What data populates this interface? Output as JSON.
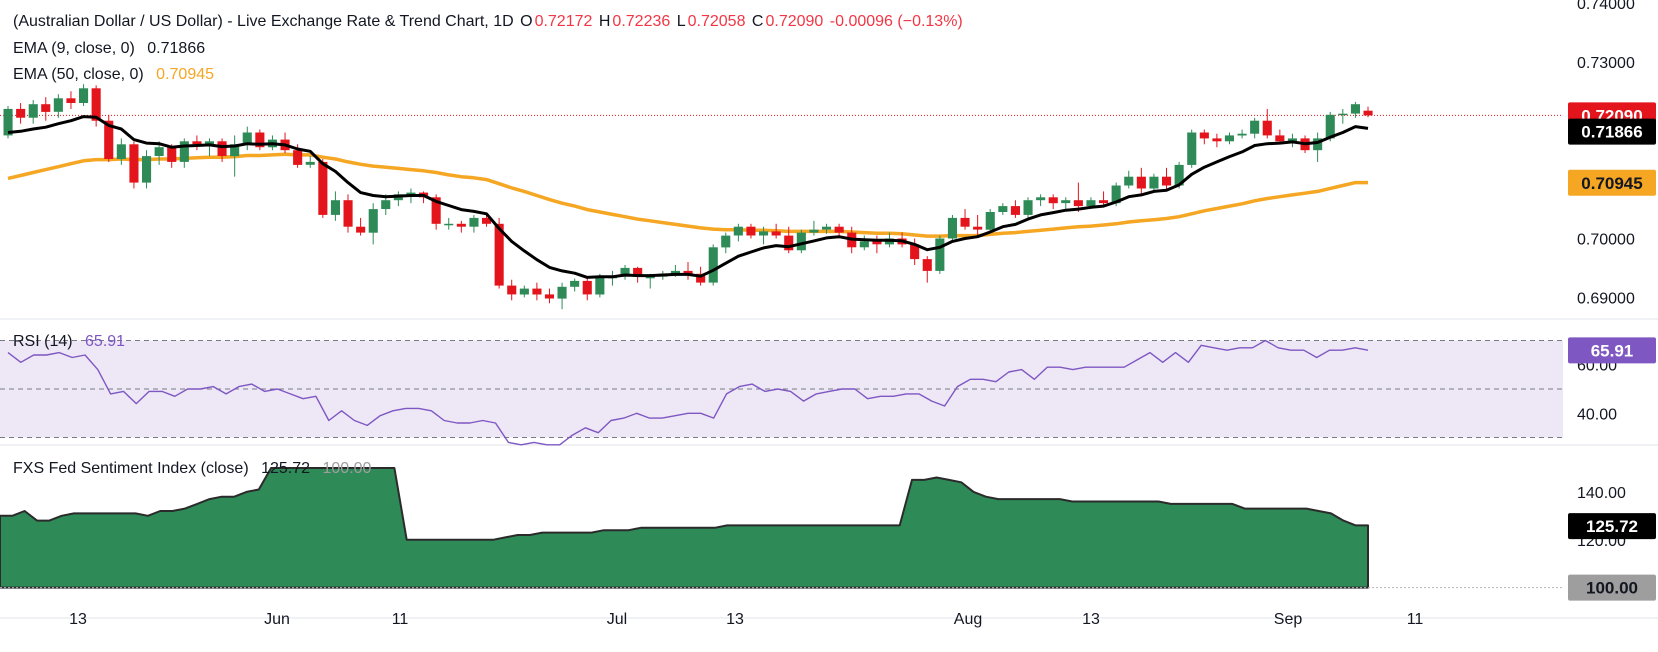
{
  "header": {
    "title": "(Australian Dollar / US Dollar) - Live Exchange Rate & Trend Chart, 1D",
    "open_label": "O",
    "open": "0.72172",
    "high_label": "H",
    "high": "0.72236",
    "low_label": "L",
    "low": "0.72058",
    "close_label": "C",
    "close": "0.72090",
    "change": "-0.00096 (−0.13%)"
  },
  "colors": {
    "up": "#2e8b57",
    "down": "#e3141b",
    "ema9": "#000000",
    "ema50": "#f5a623",
    "rsi": "#7e57c2",
    "rsi_band": "#ede7f6",
    "sentiment_fill": "#2e8b57",
    "badge_close": "#e3141b",
    "badge_ema9": "#000000",
    "badge_ema50": "#f5a623",
    "badge_gray": "#9e9e9e"
  },
  "chart_data": [
    {
      "type": "candlestick",
      "pane": "price",
      "y_ticks": [
        "0.74000",
        "0.73000",
        "0.70000",
        "0.69000"
      ],
      "ylim": [
        0.6865,
        0.7405
      ],
      "x_ticks": [
        "13",
        "Jun",
        "11",
        "Jul",
        "13",
        "Aug",
        "13",
        "Sep",
        "11"
      ],
      "ema9_label": "EMA (9, close, 0)",
      "ema9_value": "0.71866",
      "ema50_label": "EMA (50, close, 0)",
      "ema50_value": "0.70945",
      "last_close": "0.72090",
      "candles": [
        [
          0.7175,
          0.7225,
          0.717,
          0.722
        ],
        [
          0.722,
          0.723,
          0.7195,
          0.7205
        ],
        [
          0.7205,
          0.7235,
          0.7195,
          0.7228
        ],
        [
          0.7228,
          0.724,
          0.72,
          0.7215
        ],
        [
          0.7215,
          0.7245,
          0.7205,
          0.7238
        ],
        [
          0.7238,
          0.725,
          0.722,
          0.723
        ],
        [
          0.723,
          0.7262,
          0.7225,
          0.7255
        ],
        [
          0.7255,
          0.726,
          0.719,
          0.72
        ],
        [
          0.72,
          0.721,
          0.713,
          0.7135
        ],
        [
          0.7135,
          0.717,
          0.7125,
          0.716
        ],
        [
          0.716,
          0.7165,
          0.7085,
          0.7095
        ],
        [
          0.7095,
          0.715,
          0.7085,
          0.714
        ],
        [
          0.714,
          0.7165,
          0.7125,
          0.7155
        ],
        [
          0.7155,
          0.716,
          0.712,
          0.713
        ],
        [
          0.713,
          0.717,
          0.712,
          0.7165
        ],
        [
          0.7165,
          0.7175,
          0.715,
          0.716
        ],
        [
          0.716,
          0.717,
          0.714,
          0.7165
        ],
        [
          0.7165,
          0.717,
          0.713,
          0.714
        ],
        [
          0.714,
          0.7175,
          0.7105,
          0.716
        ],
        [
          0.716,
          0.719,
          0.715,
          0.718
        ],
        [
          0.718,
          0.7185,
          0.715,
          0.7155
        ],
        [
          0.7155,
          0.7175,
          0.715,
          0.7168
        ],
        [
          0.7168,
          0.718,
          0.7145,
          0.715
        ],
        [
          0.715,
          0.716,
          0.712,
          0.7125
        ],
        [
          0.7125,
          0.714,
          0.712,
          0.713
        ],
        [
          0.713,
          0.7135,
          0.7035,
          0.704
        ],
        [
          0.704,
          0.708,
          0.703,
          0.7065
        ],
        [
          0.7065,
          0.7075,
          0.701,
          0.702
        ],
        [
          0.702,
          0.7035,
          0.7005,
          0.701
        ],
        [
          0.701,
          0.706,
          0.699,
          0.705
        ],
        [
          0.705,
          0.7075,
          0.704,
          0.7065
        ],
        [
          0.7065,
          0.708,
          0.7055,
          0.7075
        ],
        [
          0.7075,
          0.7085,
          0.706,
          0.7078
        ],
        [
          0.7078,
          0.708,
          0.706,
          0.707
        ],
        [
          0.707,
          0.7075,
          0.7015,
          0.7025
        ],
        [
          0.7025,
          0.7035,
          0.7015,
          0.7025
        ],
        [
          0.7025,
          0.703,
          0.701,
          0.702
        ],
        [
          0.702,
          0.704,
          0.701,
          0.7035
        ],
        [
          0.7035,
          0.704,
          0.702,
          0.7025
        ],
        [
          0.7025,
          0.7035,
          0.6915,
          0.692
        ],
        [
          0.692,
          0.693,
          0.6895,
          0.6905
        ],
        [
          0.6905,
          0.692,
          0.69,
          0.6915
        ],
        [
          0.6915,
          0.6925,
          0.6895,
          0.6905
        ],
        [
          0.6905,
          0.6915,
          0.689,
          0.6898
        ],
        [
          0.6898,
          0.6925,
          0.688,
          0.6918
        ],
        [
          0.6918,
          0.6932,
          0.691,
          0.6928
        ],
        [
          0.6928,
          0.6935,
          0.6895,
          0.6905
        ],
        [
          0.6905,
          0.694,
          0.69,
          0.6935
        ],
        [
          0.6935,
          0.6945,
          0.692,
          0.6935
        ],
        [
          0.6935,
          0.6955,
          0.693,
          0.695
        ],
        [
          0.695,
          0.6952,
          0.6925,
          0.6935
        ],
        [
          0.6935,
          0.694,
          0.6915,
          0.6935
        ],
        [
          0.6935,
          0.6945,
          0.693,
          0.694
        ],
        [
          0.694,
          0.6955,
          0.6935,
          0.6945
        ],
        [
          0.6945,
          0.696,
          0.693,
          0.694
        ],
        [
          0.694,
          0.6952,
          0.692,
          0.6925
        ],
        [
          0.6925,
          0.699,
          0.692,
          0.6985
        ],
        [
          0.6985,
          0.701,
          0.6975,
          0.7005
        ],
        [
          0.7005,
          0.7025,
          0.6995,
          0.702
        ],
        [
          0.702,
          0.7025,
          0.7,
          0.7005
        ],
        [
          0.7005,
          0.702,
          0.699,
          0.7012
        ],
        [
          0.7012,
          0.7025,
          0.7,
          0.7005
        ],
        [
          0.7005,
          0.702,
          0.6975,
          0.698
        ],
        [
          0.698,
          0.7015,
          0.6975,
          0.701
        ],
        [
          0.701,
          0.703,
          0.7005,
          0.7015
        ],
        [
          0.7015,
          0.7025,
          0.7008,
          0.702
        ],
        [
          0.702,
          0.7025,
          0.7,
          0.701
        ],
        [
          0.701,
          0.702,
          0.6975,
          0.6985
        ],
        [
          0.6985,
          0.7005,
          0.698,
          0.6995
        ],
        [
          0.6995,
          0.7005,
          0.6975,
          0.699
        ],
        [
          0.699,
          0.701,
          0.6985,
          0.7
        ],
        [
          0.7,
          0.701,
          0.6985,
          0.699
        ],
        [
          0.699,
          0.7,
          0.6955,
          0.6965
        ],
        [
          0.6965,
          0.697,
          0.6925,
          0.6945
        ],
        [
          0.6945,
          0.7005,
          0.694,
          0.7
        ],
        [
          0.7,
          0.704,
          0.6995,
          0.7035
        ],
        [
          0.7035,
          0.705,
          0.7015,
          0.702
        ],
        [
          0.702,
          0.704,
          0.7005,
          0.7015
        ],
        [
          0.7015,
          0.705,
          0.701,
          0.7045
        ],
        [
          0.7045,
          0.706,
          0.704,
          0.7055
        ],
        [
          0.7055,
          0.7065,
          0.7035,
          0.704
        ],
        [
          0.704,
          0.707,
          0.7035,
          0.7065
        ],
        [
          0.7065,
          0.7075,
          0.7055,
          0.707
        ],
        [
          0.707,
          0.7075,
          0.705,
          0.706
        ],
        [
          0.706,
          0.707,
          0.705,
          0.7065
        ],
        [
          0.7065,
          0.7095,
          0.7045,
          0.7055
        ],
        [
          0.7055,
          0.707,
          0.705,
          0.7065
        ],
        [
          0.7065,
          0.708,
          0.7055,
          0.706
        ],
        [
          0.706,
          0.7095,
          0.7055,
          0.709
        ],
        [
          0.709,
          0.7115,
          0.7085,
          0.7105
        ],
        [
          0.7105,
          0.712,
          0.7075,
          0.7085
        ],
        [
          0.7085,
          0.711,
          0.708,
          0.7105
        ],
        [
          0.7105,
          0.712,
          0.708,
          0.709
        ],
        [
          0.709,
          0.713,
          0.7085,
          0.7125
        ],
        [
          0.7125,
          0.7185,
          0.712,
          0.718
        ],
        [
          0.718,
          0.7185,
          0.716,
          0.717
        ],
        [
          0.717,
          0.7178,
          0.7155,
          0.7165
        ],
        [
          0.7165,
          0.718,
          0.716,
          0.7175
        ],
        [
          0.7175,
          0.7185,
          0.717,
          0.7178
        ],
        [
          0.7178,
          0.7205,
          0.717,
          0.72
        ],
        [
          0.72,
          0.722,
          0.717,
          0.7175
        ],
        [
          0.7175,
          0.7185,
          0.716,
          0.7165
        ],
        [
          0.7165,
          0.7178,
          0.7155,
          0.717
        ],
        [
          0.717,
          0.7175,
          0.7145,
          0.715
        ],
        [
          0.715,
          0.718,
          0.713,
          0.717
        ],
        [
          0.717,
          0.7215,
          0.7165,
          0.721
        ],
        [
          0.721,
          0.722,
          0.7195,
          0.7212
        ],
        [
          0.7212,
          0.7232,
          0.7205,
          0.7228
        ],
        [
          0.7217,
          0.7224,
          0.7206,
          0.7209
        ]
      ],
      "ema9": [
        0.718,
        0.7182,
        0.7186,
        0.7189,
        0.7195,
        0.72,
        0.7207,
        0.7206,
        0.7192,
        0.7186,
        0.7168,
        0.7162,
        0.7161,
        0.7155,
        0.7157,
        0.7158,
        0.7159,
        0.7156,
        0.7157,
        0.7161,
        0.716,
        0.7161,
        0.7159,
        0.7152,
        0.7148,
        0.7127,
        0.7114,
        0.7095,
        0.7078,
        0.7073,
        0.7071,
        0.7072,
        0.7073,
        0.7073,
        0.7063,
        0.7056,
        0.7049,
        0.7046,
        0.7042,
        0.7017,
        0.6995,
        0.6979,
        0.6964,
        0.6951,
        0.6945,
        0.6941,
        0.6934,
        0.6935,
        0.6935,
        0.6938,
        0.6937,
        0.6937,
        0.6938,
        0.6939,
        0.6939,
        0.6936,
        0.6946,
        0.6958,
        0.697,
        0.6977,
        0.6984,
        0.6988,
        0.6986,
        0.6991,
        0.6996,
        0.7001,
        0.7003,
        0.6999,
        0.6998,
        0.6997,
        0.6997,
        0.6996,
        0.699,
        0.6981,
        0.6985,
        0.6995,
        0.7,
        0.7003,
        0.7011,
        0.702,
        0.7024,
        0.7033,
        0.704,
        0.7044,
        0.7048,
        0.705,
        0.7053,
        0.7055,
        0.7062,
        0.7071,
        0.7074,
        0.708,
        0.7082,
        0.7091,
        0.7109,
        0.7121,
        0.713,
        0.7139,
        0.7147,
        0.7158,
        0.7161,
        0.7162,
        0.7164,
        0.7161,
        0.7163,
        0.7172,
        0.718,
        0.719,
        0.7187
      ],
      "ema50": [
        0.7102,
        0.7107,
        0.7112,
        0.7117,
        0.7122,
        0.7127,
        0.7132,
        0.7134,
        0.7134,
        0.7135,
        0.7134,
        0.7134,
        0.7135,
        0.7135,
        0.7136,
        0.7137,
        0.7138,
        0.7138,
        0.7139,
        0.7141,
        0.7141,
        0.7142,
        0.7143,
        0.7142,
        0.7142,
        0.7138,
        0.7135,
        0.713,
        0.7126,
        0.7123,
        0.7121,
        0.7119,
        0.7117,
        0.7115,
        0.7112,
        0.7108,
        0.7105,
        0.7103,
        0.71,
        0.7093,
        0.7086,
        0.708,
        0.7073,
        0.7066,
        0.706,
        0.7055,
        0.7049,
        0.7045,
        0.7041,
        0.7037,
        0.7033,
        0.703,
        0.7027,
        0.7024,
        0.7021,
        0.7018,
        0.7016,
        0.7015,
        0.7015,
        0.7014,
        0.7014,
        0.7013,
        0.7012,
        0.7012,
        0.7012,
        0.7012,
        0.7012,
        0.7011,
        0.701,
        0.7009,
        0.7009,
        0.7008,
        0.7006,
        0.7004,
        0.7004,
        0.7005,
        0.7005,
        0.7005,
        0.7007,
        0.7009,
        0.701,
        0.7012,
        0.7014,
        0.7016,
        0.7018,
        0.702,
        0.7021,
        0.7023,
        0.7025,
        0.7028,
        0.703,
        0.7032,
        0.7034,
        0.7037,
        0.7042,
        0.7047,
        0.7051,
        0.7055,
        0.7059,
        0.7064,
        0.7068,
        0.7071,
        0.7074,
        0.7077,
        0.708,
        0.7085,
        0.709,
        0.7095,
        0.7095
      ]
    },
    {
      "type": "line",
      "pane": "rsi",
      "label": "RSI (14)",
      "value_text": "65.91",
      "y_ticks": [
        "60.00",
        "40.00"
      ],
      "ylim": [
        26.5,
        73.5
      ],
      "band": [
        30,
        70
      ],
      "midline": 50,
      "values": [
        65,
        61,
        64,
        64,
        65,
        63,
        64,
        58,
        48,
        49,
        44,
        49,
        49,
        47,
        50,
        50,
        51,
        48,
        51,
        52,
        49,
        50,
        48,
        46,
        47,
        37,
        41,
        37,
        35,
        39,
        41,
        42,
        42,
        41,
        37,
        36,
        36,
        37,
        36,
        28,
        27,
        28,
        27,
        27,
        31,
        34,
        32,
        37,
        38,
        40,
        38,
        38,
        39,
        40,
        40,
        38,
        48,
        51,
        52,
        49,
        50,
        49,
        45,
        48,
        49,
        50,
        50,
        46,
        47,
        47,
        48,
        48,
        45,
        43,
        51,
        54,
        54,
        53,
        57,
        58,
        54,
        59,
        59,
        58,
        59,
        59,
        59,
        59,
        62,
        65,
        61,
        65,
        61,
        68,
        67,
        66,
        67,
        67,
        70,
        67,
        66,
        66,
        63,
        66,
        66,
        67,
        66
      ]
    },
    {
      "type": "area",
      "pane": "sentiment",
      "label": "FXS Fed Sentiment Index (close)",
      "value_text": "125.72",
      "ref_value_text": "100.00",
      "y_ticks": [
        "140.00",
        "120.00"
      ],
      "ylim": [
        99,
        155
      ],
      "baseline": 100,
      "values": [
        130,
        130,
        132,
        128,
        128,
        130,
        131,
        131,
        131,
        131,
        131,
        131,
        130,
        132,
        132,
        133,
        135,
        137,
        138,
        138,
        140,
        141,
        150,
        150,
        150,
        150,
        150,
        150,
        150,
        150,
        150,
        150,
        150,
        120,
        120,
        120,
        120,
        120,
        120,
        120,
        120,
        121,
        122,
        122,
        123,
        123,
        123,
        123,
        123,
        124,
        124,
        124,
        125,
        125,
        125,
        125,
        125,
        125,
        125,
        126,
        126,
        126,
        126,
        126,
        126,
        126,
        126,
        126,
        126,
        126,
        126,
        126,
        126,
        126,
        145,
        145,
        146,
        145,
        144,
        140,
        138,
        137,
        137,
        137,
        137,
        137,
        137,
        136,
        136,
        136,
        136,
        136,
        136,
        136,
        136,
        135,
        135,
        135,
        135,
        135,
        135,
        133,
        133,
        133,
        133,
        133,
        133,
        132,
        131,
        128,
        126,
        126
      ]
    }
  ],
  "badges": {
    "close": "0.72090",
    "ema9": "0.71866",
    "ema50": "0.70945",
    "rsi": "65.91",
    "sentiment": "125.72",
    "reference": "100.00"
  }
}
